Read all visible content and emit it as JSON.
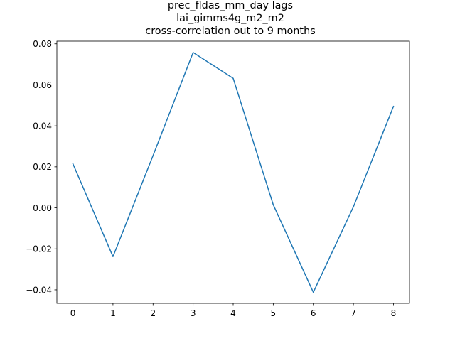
{
  "chart_data": {
    "type": "line",
    "title_lines": [
      "prec_fldas_mm_day lags",
      "lai_gimms4g_m2_m2",
      "cross-correlation out to 9 months"
    ],
    "xlabel": "",
    "ylabel": "",
    "x": [
      0,
      1,
      2,
      3,
      4,
      5,
      6,
      7,
      8
    ],
    "series": [
      {
        "values": [
          0.0215,
          -0.0238,
          0.0255,
          0.0758,
          0.0632,
          0.0015,
          -0.0412,
          0.0005,
          0.0495
        ]
      }
    ],
    "xlim": [
      -0.4,
      8.4
    ],
    "ylim": [
      -0.0466,
      0.0813
    ],
    "xticks": [
      "0",
      "1",
      "2",
      "3",
      "4",
      "5",
      "6",
      "7",
      "8"
    ],
    "yticks": [
      "−0.04",
      "−0.02",
      "0.00",
      "0.02",
      "0.04",
      "0.06",
      "0.08"
    ],
    "ytick_values": [
      -0.04,
      -0.02,
      0.0,
      0.02,
      0.04,
      0.06,
      0.08
    ],
    "grid": false,
    "line_color": "#1f77b4"
  }
}
